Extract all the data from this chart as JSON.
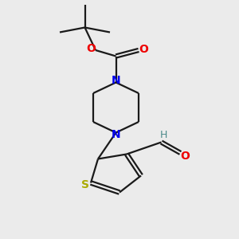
{
  "background_color": "#ebebeb",
  "bond_color": "#1a1a1a",
  "nitrogen_color": "#0000ee",
  "oxygen_color": "#ee0000",
  "sulfur_color": "#aaaa00",
  "cho_h_color": "#4a8a8a",
  "lw": 1.6,
  "figsize": [
    3.0,
    3.0
  ],
  "dpi": 100,
  "xlim": [
    0,
    10
  ],
  "ylim": [
    0,
    10
  ]
}
